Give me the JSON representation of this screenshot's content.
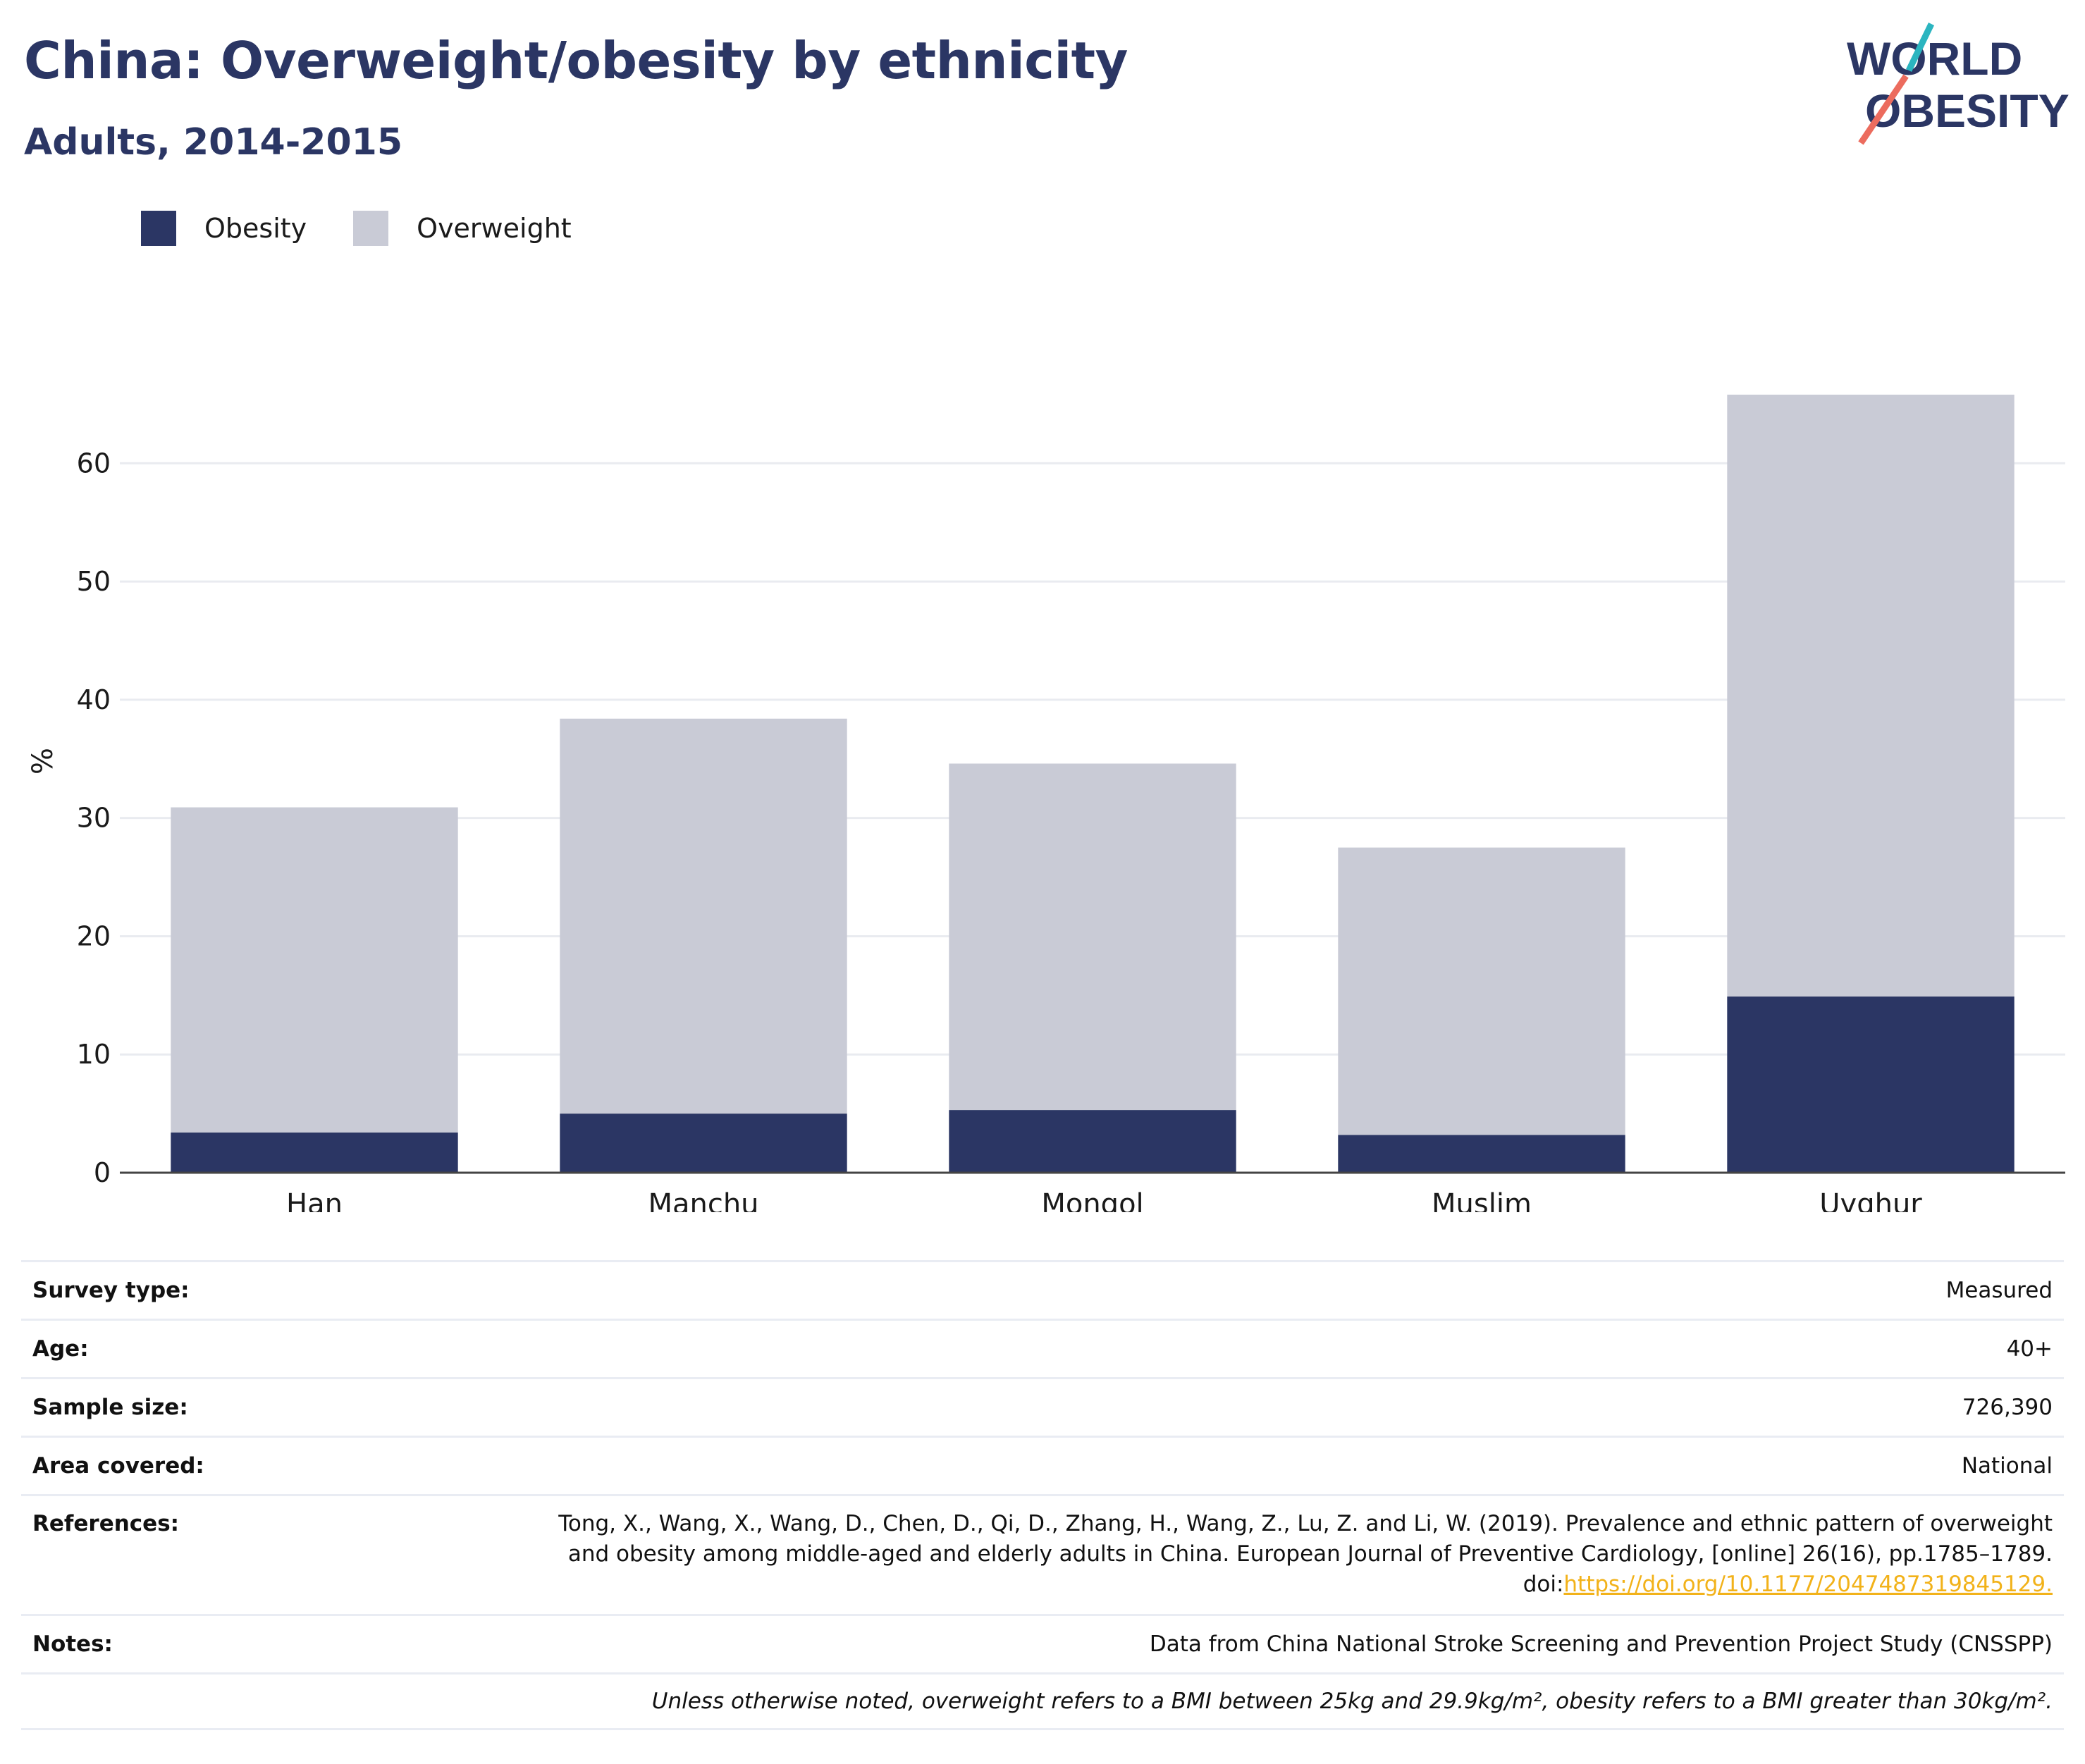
{
  "header": {
    "title": "China: Overweight/obesity by ethnicity",
    "subtitle": "Adults, 2014-2015"
  },
  "logo": {
    "line1": "WORLD",
    "line2": "OBESITY",
    "colors": {
      "navy": "#2b3664",
      "teal": "#2bb5c0",
      "coral": "#ec6c5e"
    }
  },
  "legend": [
    {
      "label": "Obesity",
      "color": "#2b3664"
    },
    {
      "label": "Overweight",
      "color": "#c9cbd6"
    }
  ],
  "chart_data": {
    "type": "bar",
    "stacked": true,
    "title": "",
    "xlabel": "",
    "ylabel": "%",
    "categories": [
      "Han",
      "Manchu",
      "Mongol",
      "Muslim",
      "Uyghur"
    ],
    "series": [
      {
        "name": "Obesity",
        "color": "#2b3664",
        "values": [
          3.4,
          5.0,
          5.3,
          3.2,
          14.9
        ]
      },
      {
        "name": "Overweight",
        "color": "#c9cbd6",
        "values": [
          27.5,
          33.4,
          29.3,
          24.3,
          50.9
        ]
      }
    ],
    "ylim": [
      0,
      65.8
    ],
    "yticks": [
      0,
      10,
      20,
      30,
      40,
      50,
      60
    ],
    "grid": true,
    "legend_position": "top-left",
    "colors": {
      "grid": "#e9ebf0",
      "axis": "#444444",
      "text": "#1a1a1a"
    }
  },
  "info": {
    "survey_type": {
      "label": "Survey type:",
      "value": "Measured"
    },
    "age": {
      "label": "Age:",
      "value": "40+"
    },
    "sample_size": {
      "label": "Sample size:",
      "value": "726,390"
    },
    "area": {
      "label": "Area covered:",
      "value": "National"
    },
    "references": {
      "label": "References:",
      "line1": "Tong, X., Wang, X., Wang, D., Chen, D., Qi, D., Zhang, H., Wang, Z., Lu, Z. and Li, W. (2019). Prevalence and ethnic pattern of overweight",
      "line2": "and obesity among middle-aged and elderly adults in China. European Journal of Preventive Cardiology, [online] 26(16), pp.1785–1789.",
      "doi_prefix": "doi:",
      "doi_link": "https://doi.org/10.1177/2047487319845129."
    },
    "notes": {
      "label": "Notes:",
      "value": "Data from China National Stroke Screening and Prevention Project Study (CNSSPP)"
    },
    "footnote": "Unless otherwise noted, overweight refers to a BMI between 25kg and 29.9kg/m², obesity refers to a BMI greater than 30kg/m²."
  }
}
